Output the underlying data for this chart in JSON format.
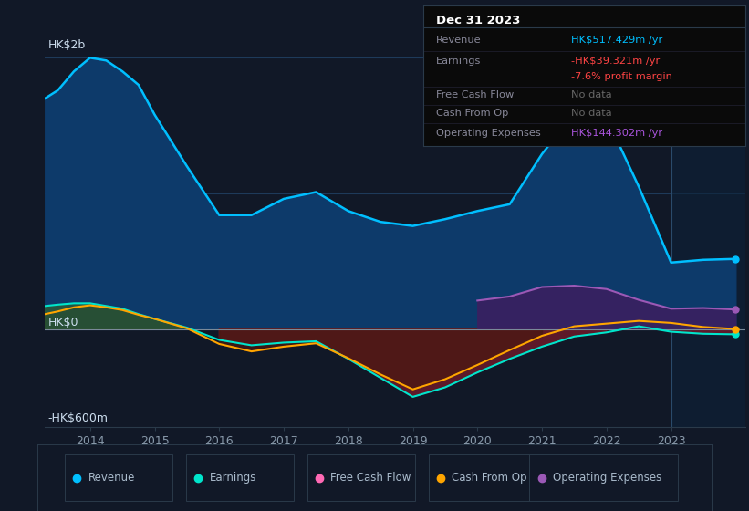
{
  "bg_color": "#111827",
  "plot_bg_color": "#111827",
  "grid_color": "#1e3a5a",
  "y_label_top": "HK$2b",
  "y_label_mid": "HK$0",
  "y_label_bot": "-HK$600m",
  "years": [
    2013.3,
    2013.5,
    2013.75,
    2014.0,
    2014.25,
    2014.5,
    2014.75,
    2015.0,
    2015.5,
    2016.0,
    2016.5,
    2017.0,
    2017.5,
    2018.0,
    2018.5,
    2019.0,
    2019.5,
    2020.0,
    2020.5,
    2021.0,
    2021.5,
    2022.0,
    2022.5,
    2023.0,
    2023.5,
    2024.0
  ],
  "revenue": [
    1700,
    1760,
    1900,
    2000,
    1980,
    1900,
    1800,
    1580,
    1200,
    840,
    840,
    960,
    1010,
    870,
    790,
    760,
    810,
    870,
    920,
    1290,
    1590,
    1560,
    1050,
    490,
    510,
    517
  ],
  "earnings": [
    170,
    180,
    190,
    190,
    170,
    150,
    110,
    75,
    10,
    -80,
    -120,
    -100,
    -90,
    -220,
    -360,
    -500,
    -430,
    -320,
    -220,
    -130,
    -55,
    -25,
    20,
    -20,
    -35,
    -39
  ],
  "cash_from_op": [
    110,
    130,
    160,
    175,
    160,
    140,
    105,
    75,
    5,
    -110,
    -165,
    -130,
    -105,
    -215,
    -335,
    -445,
    -370,
    -265,
    -155,
    -50,
    20,
    40,
    60,
    45,
    15,
    0
  ],
  "op_expenses": [
    null,
    null,
    null,
    null,
    null,
    null,
    null,
    null,
    null,
    null,
    null,
    null,
    null,
    null,
    null,
    null,
    null,
    210,
    240,
    310,
    320,
    295,
    215,
    150,
    155,
    144
  ],
  "revenue_color": "#00bfff",
  "earnings_color": "#00e5cc",
  "cash_from_op_color": "#ffa500",
  "op_expenses_color": "#9b59b6",
  "revenue_fill_color": "#0d3a6a",
  "earnings_fill_pos_color": "#2a5a3a",
  "earnings_fill_neg_color": "#6b1a2a",
  "cash_from_op_fill_neg_color": "#4a1810",
  "op_expenses_fill_color": "#3a2060",
  "info_box": {
    "title": "Dec 31 2023",
    "rows": [
      {
        "label": "Revenue",
        "value": "HK$517.429m /yr",
        "value_color": "#00bfff"
      },
      {
        "label": "Earnings",
        "value": "-HK$39.321m /yr",
        "value_color": "#ff4444"
      },
      {
        "label": "",
        "value": "-7.6% profit margin",
        "value_color": "#ff4444"
      },
      {
        "label": "Free Cash Flow",
        "value": "No data",
        "value_color": "#666666"
      },
      {
        "label": "Cash From Op",
        "value": "No data",
        "value_color": "#666666"
      },
      {
        "label": "Operating Expenses",
        "value": "HK$144.302m /yr",
        "value_color": "#aa55dd"
      }
    ]
  },
  "legend_items": [
    {
      "label": "Revenue",
      "color": "#00bfff"
    },
    {
      "label": "Earnings",
      "color": "#00e5cc"
    },
    {
      "label": "Free Cash Flow",
      "color": "#ff69b4"
    },
    {
      "label": "Cash From Op",
      "color": "#ffa500"
    },
    {
      "label": "Operating Expenses",
      "color": "#9b59b6"
    }
  ]
}
